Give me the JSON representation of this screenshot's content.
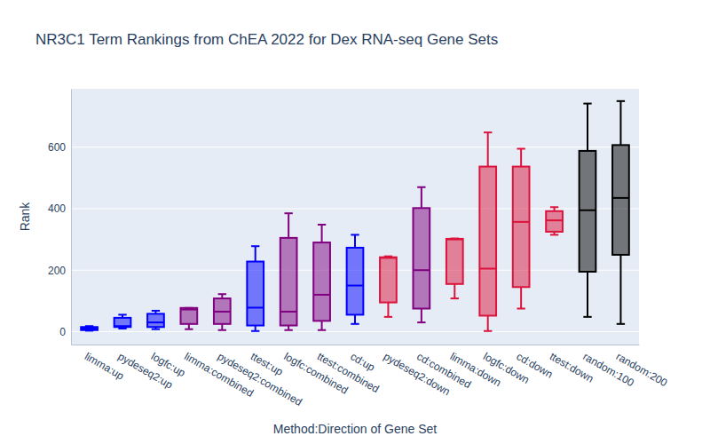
{
  "chart_data": {
    "type": "box",
    "title": "NR3C1 Term Rankings from ChEA 2022 for Dex RNA-seq Gene Sets",
    "x_label": "Method:Direction of Gene Set",
    "y_label": "Rank",
    "categories": [
      "limma:up",
      "pydeseq2:up",
      "logfc:up",
      "limma:combined",
      "pydeseq2:combined",
      "ttest:up",
      "logfc:combined",
      "ttest:combined",
      "cd:up",
      "pydeseq2:down",
      "cd:combined",
      "limma:down",
      "logfc:down",
      "cd:down",
      "ttest:down",
      "random:100",
      "random:200"
    ],
    "min": [
      3,
      10,
      8,
      8,
      5,
      2,
      5,
      5,
      25,
      48,
      30,
      108,
      2,
      75,
      315,
      48,
      25
    ],
    "q1": [
      5,
      15,
      15,
      25,
      25,
      20,
      20,
      35,
      55,
      95,
      75,
      155,
      52,
      145,
      325,
      195,
      250
    ],
    "median": [
      10,
      18,
      30,
      72,
      65,
      78,
      65,
      120,
      150,
      240,
      200,
      300,
      205,
      357,
      362,
      395,
      435
    ],
    "q3": [
      15,
      45,
      58,
      77,
      108,
      228,
      305,
      290,
      273,
      242,
      402,
      302,
      537,
      537,
      392,
      588,
      607
    ],
    "max": [
      18,
      55,
      68,
      77,
      122,
      278,
      385,
      348,
      315,
      245,
      470,
      303,
      648,
      595,
      405,
      742,
      750
    ],
    "colors": [
      "#0000ff",
      "#0000ff",
      "#0000ff",
      "#800080",
      "#800080",
      "#0000ff",
      "#800080",
      "#800080",
      "#0000ff",
      "#dc143c",
      "#800080",
      "#dc143c",
      "#dc143c",
      "#dc143c",
      "#dc143c",
      "#000000",
      "#000000"
    ],
    "ylim": [
      -42,
      790
    ],
    "yticks": [
      0,
      200,
      400,
      600
    ],
    "grid": true
  }
}
